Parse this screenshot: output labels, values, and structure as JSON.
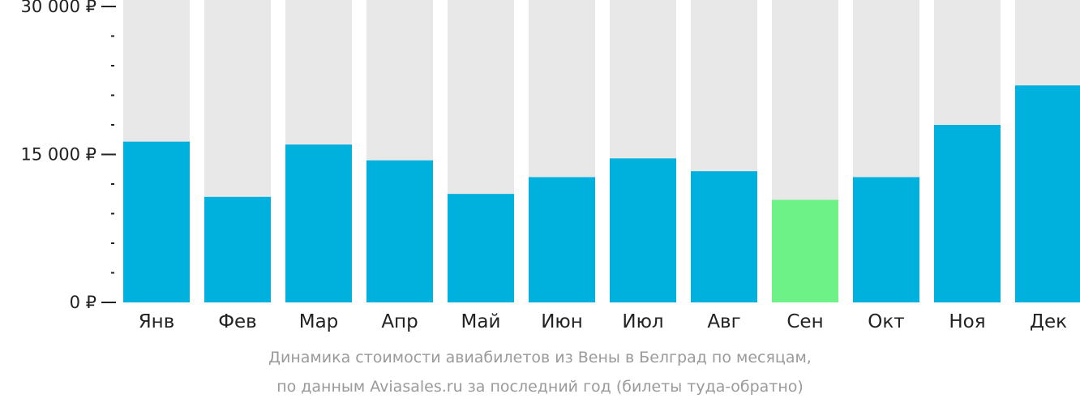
{
  "chart_data": {
    "type": "bar",
    "categories": [
      "Янв",
      "Фев",
      "Мар",
      "Апр",
      "Май",
      "Июн",
      "Июл",
      "Авг",
      "Сен",
      "Окт",
      "Ноя",
      "Дек"
    ],
    "values": [
      16300,
      10700,
      16000,
      14400,
      11000,
      12700,
      14600,
      13300,
      10400,
      12700,
      18000,
      22000
    ],
    "ylim": [
      0,
      30000
    ],
    "yticks": [
      {
        "value": 0,
        "label": "0 ₽"
      },
      {
        "value": 15000,
        "label": "15 000 ₽"
      },
      {
        "value": 30000,
        "label": "30 000 ₽"
      }
    ],
    "minor_tick_step": 3000,
    "highlight_index": 8,
    "caption": [
      "Динамика стоимости авиабилетов из Вены в Белград по месяцам,",
      "по данным Aviasales.ru за последний год (билеты туда-обратно)"
    ],
    "colors": {
      "bar": "#00b0dd",
      "bar_highlight": "#6cf287",
      "bar_background": "#e8e8e8",
      "axis": "#222222",
      "caption": "#9a9a9a"
    }
  }
}
